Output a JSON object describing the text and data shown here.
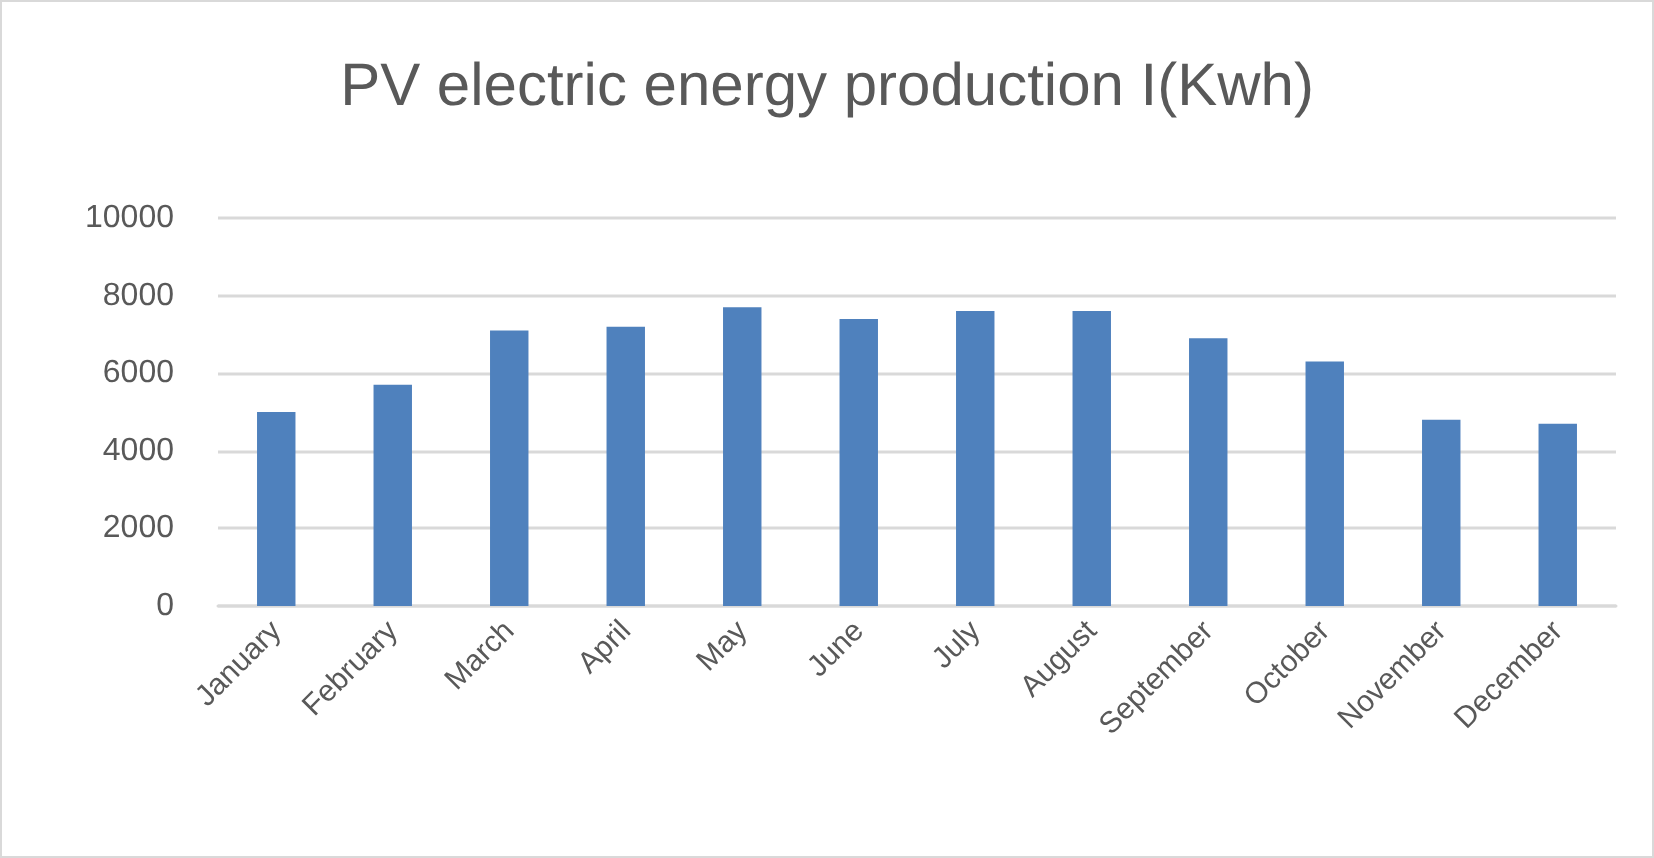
{
  "chart_data": {
    "type": "bar",
    "title": "PV electric energy production I(Kwh)",
    "categories": [
      "January",
      "February",
      "March",
      "April",
      "May",
      "June",
      "July",
      "August",
      "September",
      "October",
      "November",
      "December"
    ],
    "values": [
      5000,
      5700,
      7100,
      7200,
      7700,
      7400,
      7600,
      7600,
      6900,
      6300,
      4800,
      4700
    ],
    "color": "#4f81bd",
    "ylim": [
      0,
      10000
    ],
    "yticks": [
      0,
      2000,
      4000,
      6000,
      8000,
      10000
    ],
    "grid": "y"
  }
}
